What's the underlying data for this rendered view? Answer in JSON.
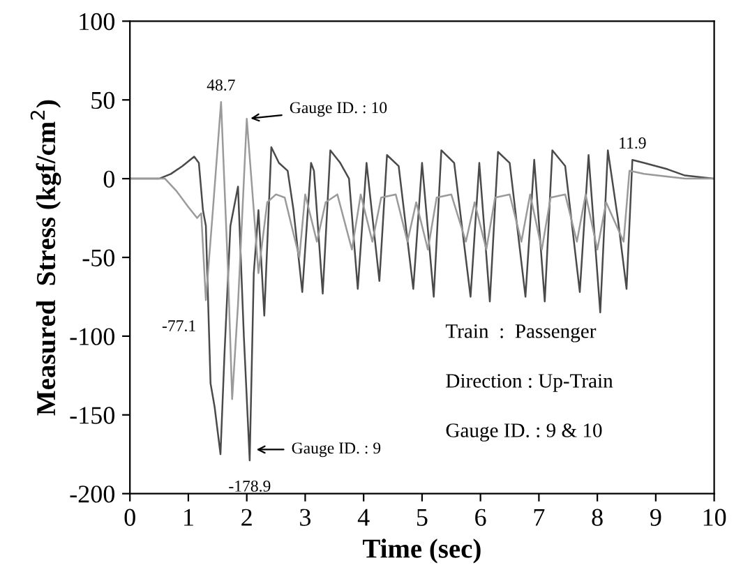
{
  "chart_data": {
    "type": "line",
    "xlabel": "Time (sec)",
    "ylabel": "Measured  Stress (kgf/cm$^{2}$)",
    "xlim": [
      0,
      10
    ],
    "xticks": [
      0,
      1,
      2,
      3,
      4,
      5,
      6,
      7,
      8,
      9,
      10
    ],
    "ylim": [
      -200,
      100
    ],
    "yticks": [
      -200,
      -150,
      -100,
      -50,
      0,
      50,
      100
    ],
    "grid": false,
    "legend": false,
    "series": [
      {
        "color": "#4a4a4a",
        "x": [
          0,
          0.5,
          0.7,
          0.9,
          1.1,
          1.18,
          1.25,
          1.3,
          1.38,
          1.45,
          1.55,
          1.62,
          1.72,
          1.85,
          1.95,
          2.05,
          2.12,
          2.2,
          2.3,
          2.42,
          2.55,
          2.7,
          2.8,
          2.95,
          3.1,
          3.15,
          3.3,
          3.43,
          3.6,
          3.75,
          3.9,
          4.05,
          4.27,
          4.4,
          4.6,
          4.85,
          5.0,
          5.2,
          5.33,
          5.55,
          5.83,
          5.98,
          6.16,
          6.3,
          6.5,
          6.77,
          6.92,
          7.1,
          7.23,
          7.45,
          7.7,
          7.85,
          8.05,
          8.18,
          8.35,
          8.5,
          8.6,
          8.8,
          9.2,
          9.5,
          10
        ],
        "values": [
          0,
          0,
          3,
          8,
          14,
          10,
          -20,
          -30,
          -130,
          -145,
          -175,
          -110,
          -30,
          -5,
          -100,
          -178.9,
          -60,
          -20,
          -87,
          20,
          10,
          5,
          -20,
          -72,
          10,
          5,
          -73,
          18,
          10,
          0,
          -70,
          10,
          -65,
          15,
          8,
          -70,
          10,
          -75,
          18,
          10,
          -75,
          10,
          -78,
          17,
          10,
          -75,
          12,
          -78,
          18,
          8,
          -72,
          15,
          -85,
          18,
          -25,
          -70,
          11.9,
          10,
          6,
          2,
          0
        ]
      },
      {
        "color": "#9a9a9a",
        "x": [
          0,
          0.6,
          0.8,
          1.0,
          1.15,
          1.22,
          1.3,
          1.42,
          1.56,
          1.68,
          1.75,
          1.85,
          2.0,
          2.12,
          2.2,
          2.35,
          2.5,
          2.65,
          2.8,
          2.9,
          3.0,
          3.2,
          3.35,
          3.55,
          3.8,
          3.95,
          4.15,
          4.3,
          4.55,
          4.75,
          4.9,
          5.1,
          5.25,
          5.5,
          5.75,
          5.9,
          6.1,
          6.25,
          6.5,
          6.7,
          6.85,
          7.05,
          7.2,
          7.45,
          7.65,
          7.8,
          8.0,
          8.15,
          8.45,
          8.55,
          8.8,
          9.5,
          10
        ],
        "values": [
          0,
          0,
          -8,
          -18,
          -25,
          -22,
          -77.1,
          -20,
          48.7,
          -60,
          -140,
          -80,
          38,
          -20,
          -60,
          -15,
          -10,
          -12,
          -35,
          -50,
          -10,
          -40,
          -15,
          -10,
          -45,
          -10,
          -40,
          -12,
          -10,
          -40,
          -15,
          -45,
          -12,
          -10,
          -40,
          -15,
          -45,
          -12,
          -10,
          -40,
          -10,
          -45,
          -12,
          -10,
          -40,
          -10,
          -45,
          -15,
          -40,
          5,
          3,
          0,
          0
        ]
      }
    ],
    "annotations": [
      {
        "text": "48.7",
        "x": 1.56,
        "y": 48.7
      },
      {
        "text": "Gauge ID. : 10",
        "x": 2.0,
        "y": 38
      },
      {
        "text": "-77.1",
        "x": 1.3,
        "y": -77.1
      },
      {
        "text": "Gauge ID. : 9",
        "x": 2.1,
        "y": -172
      },
      {
        "text": "-178.9",
        "x": 2.05,
        "y": -178.9
      },
      {
        "text": "11.9",
        "x": 8.6,
        "y": 11.9
      },
      "Train  :  Passenger",
      "Direction : Up-Train",
      "Gauge ID. : 9 & 10"
    ]
  }
}
